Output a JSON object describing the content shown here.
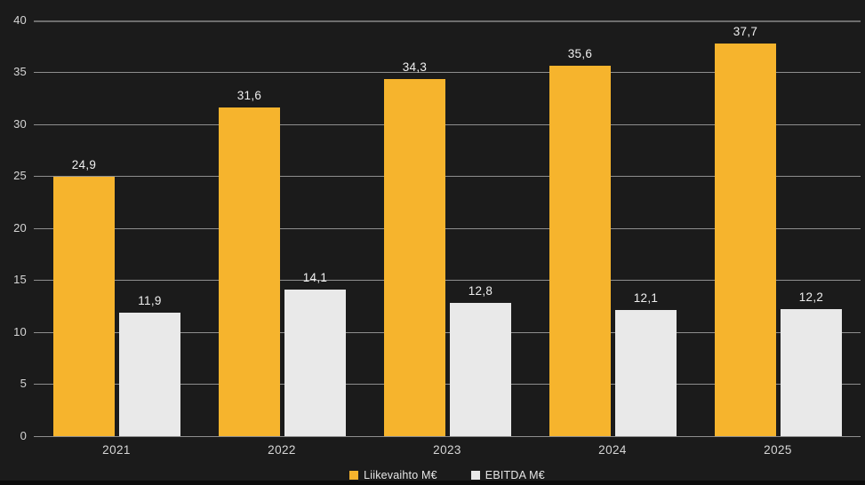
{
  "chart_data": {
    "type": "bar",
    "title": "",
    "xlabel": "",
    "ylabel": "",
    "categories": [
      "2021",
      "2022",
      "2023",
      "2024",
      "2025"
    ],
    "series": [
      {
        "name": "Liikevaihto M€",
        "key": "liikevaihto",
        "color": "#F6B42D",
        "values": [
          24.9,
          31.6,
          34.3,
          35.6,
          37.7
        ],
        "labels": [
          "24,9",
          "31,6",
          "34,3",
          "35,6",
          "37,7"
        ]
      },
      {
        "name": "EBITDA M€",
        "key": "ebitda",
        "color": "#E9E9E9",
        "values": [
          11.9,
          14.1,
          12.8,
          12.1,
          12.2
        ],
        "labels": [
          "11,9",
          "14,1",
          "12,8",
          "12,1",
          "12,2"
        ]
      }
    ],
    "ylim": [
      0,
      40
    ],
    "y_ticks": [
      0,
      5,
      10,
      15,
      20,
      25,
      30,
      35,
      40
    ],
    "grid": true,
    "legend_position": "bottom"
  },
  "colors": {
    "background": "#1B1B1B",
    "bottom_strip": "#0C0C0C",
    "gridline": "#8E8E8E",
    "tick_text": "#D6D6D6",
    "bar_label_text": "#EFEFEF",
    "legend_text": "#E6E6E6"
  }
}
